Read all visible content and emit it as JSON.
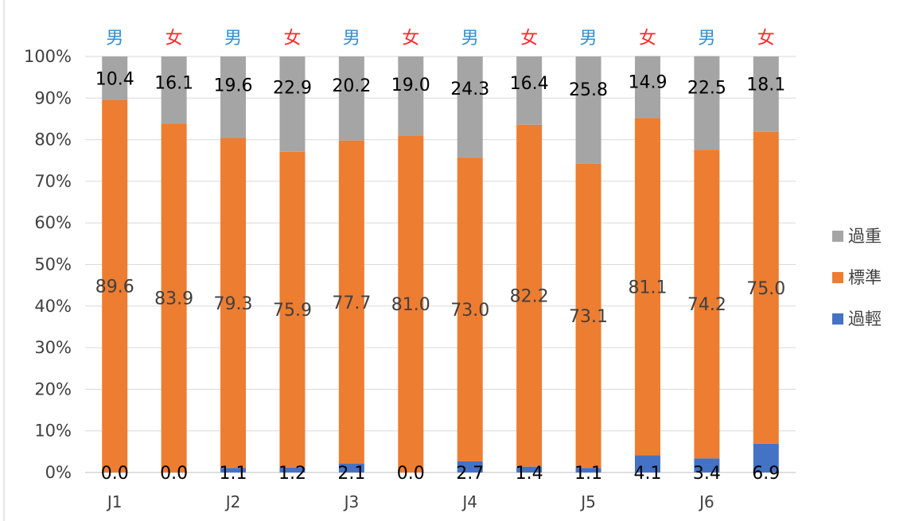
{
  "chart_data": {
    "type": "bar",
    "stacked": true,
    "percent": true,
    "title": "",
    "xlabel": "",
    "ylabel": "",
    "ylim": [
      0,
      100
    ],
    "yticks": [
      "0%",
      "10%",
      "20%",
      "30%",
      "40%",
      "50%",
      "60%",
      "70%",
      "80%",
      "90%",
      "100%"
    ],
    "grade_labels": [
      "J1",
      "J2",
      "J3",
      "J4",
      "J5",
      "J6"
    ],
    "genders": [
      "男",
      "女",
      "男",
      "女",
      "男",
      "女",
      "男",
      "女",
      "男",
      "女",
      "男",
      "女"
    ],
    "gender_colors": {
      "男": "#2e8fd1",
      "女": "#ff2a2a"
    },
    "series": [
      {
        "name": "過輕",
        "color": "#4472c4",
        "values": [
          0.0,
          0.0,
          1.1,
          1.2,
          2.1,
          0.0,
          2.7,
          1.4,
          1.1,
          4.1,
          3.4,
          6.9
        ]
      },
      {
        "name": "標準",
        "color": "#ed7d31",
        "values": [
          89.6,
          83.9,
          79.3,
          75.9,
          77.7,
          81.0,
          73.0,
          82.2,
          73.1,
          81.1,
          74.2,
          75.0
        ]
      },
      {
        "name": "過重",
        "color": "#a5a5a5",
        "values": [
          10.4,
          16.1,
          19.6,
          22.9,
          20.2,
          19.0,
          24.3,
          16.4,
          25.8,
          14.9,
          22.5,
          18.1
        ]
      }
    ],
    "legend_order": [
      "過重",
      "標準",
      "過輕"
    ],
    "legend_position": "right",
    "grid": true
  }
}
